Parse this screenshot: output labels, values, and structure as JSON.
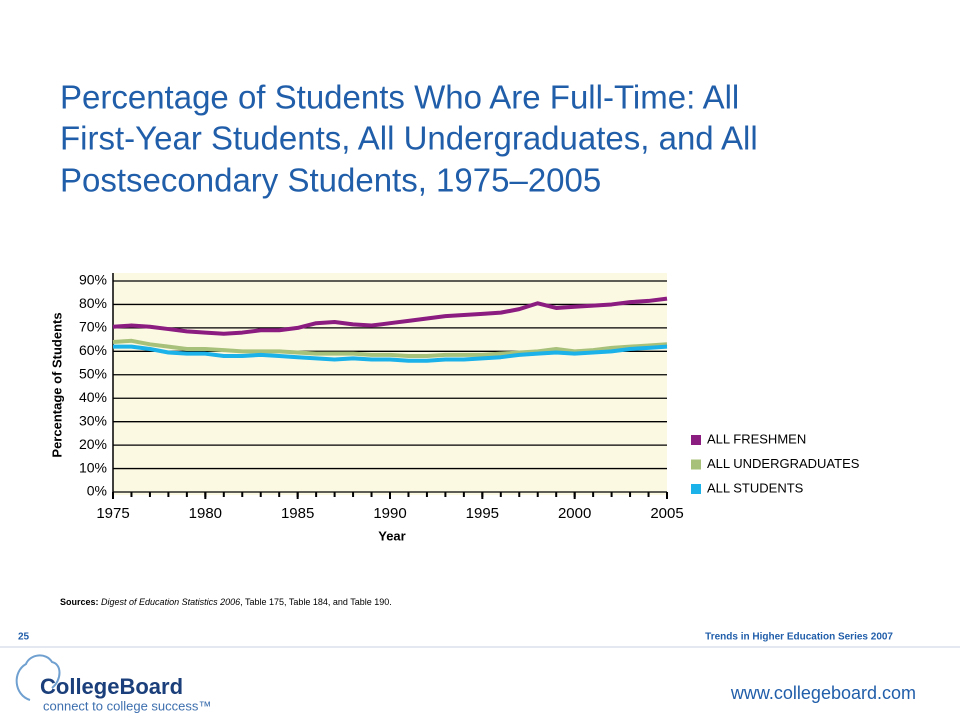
{
  "chart_data": {
    "type": "line",
    "title": [
      "Percentage of Students Who Are Full-Time: All",
      "First-Year Students, All Undergraduates, and All",
      "Postsecondary Students, 1975–2005"
    ],
    "x_label": "Year",
    "y_label": "Percentage of Students",
    "x": [
      1975,
      1976,
      1977,
      1978,
      1979,
      1980,
      1981,
      1982,
      1983,
      1984,
      1985,
      1986,
      1987,
      1988,
      1989,
      1990,
      1991,
      1992,
      1993,
      1994,
      1995,
      1996,
      1997,
      1998,
      1999,
      2000,
      2001,
      2002,
      2003,
      2004,
      2005
    ],
    "series": [
      {
        "name": "ALL FRESHMEN",
        "color": "#8b1c80",
        "values": [
          70.5,
          71,
          70.5,
          69.5,
          68.5,
          68,
          67.5,
          68,
          69,
          69,
          70,
          72,
          72.5,
          71.5,
          71,
          72,
          73,
          74,
          75,
          75.5,
          76,
          76.5,
          78,
          80.5,
          78.5,
          79,
          79.5,
          80,
          81,
          81.5,
          82.5
        ]
      },
      {
        "name": "ALL UNDERGRADUATES",
        "color": "#a8c17a",
        "values": [
          64,
          64.5,
          63,
          62,
          61,
          61,
          60.5,
          60,
          60,
          60,
          59.5,
          59,
          59,
          59,
          58.5,
          58.5,
          58,
          58,
          58.5,
          58.5,
          58.5,
          59,
          59.5,
          60,
          61,
          60,
          60.5,
          61.5,
          62,
          62.5,
          63
        ]
      },
      {
        "name": "ALL STUDENTS",
        "color": "#1bb1e9",
        "values": [
          62,
          62,
          61,
          59.5,
          59,
          59,
          58,
          58,
          58.5,
          58,
          57.5,
          57,
          56.5,
          57,
          56.5,
          56.5,
          56,
          56,
          56.5,
          56.5,
          57,
          57.5,
          58.5,
          59,
          59.5,
          59,
          59.5,
          60,
          61,
          61.5,
          62
        ]
      }
    ],
    "xlim": [
      1975,
      2005
    ],
    "xticks": [
      1975,
      1980,
      1985,
      1990,
      1995,
      2000,
      2005
    ],
    "ylim": [
      0,
      90
    ],
    "yticks": [
      {
        "value": 0,
        "label": "0%"
      },
      {
        "value": 10,
        "label": "10%"
      },
      {
        "value": 20,
        "label": "20%"
      },
      {
        "value": 30,
        "label": "30%"
      },
      {
        "value": 40,
        "label": "40%"
      },
      {
        "value": 50,
        "label": "50%"
      },
      {
        "value": 60,
        "label": "60%"
      },
      {
        "value": 70,
        "label": "70%"
      },
      {
        "value": 80,
        "label": "80%"
      },
      {
        "value": 90,
        "label": "90%"
      }
    ],
    "grid": true,
    "legend": "right",
    "background": "#fcf9e3"
  },
  "sources": {
    "label": "Sources:",
    "work": "Digest of Education Statistics 2006",
    "rest": ", Table 175, Table 184, and Table 190."
  },
  "footer": {
    "page_number": "25",
    "series": "Trends in Higher Education Series 2007",
    "logo": "CollegeBoard",
    "tagline": "connect to college success™",
    "url": "www.collegeboard.com"
  }
}
